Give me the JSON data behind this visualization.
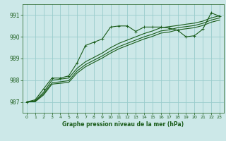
{
  "title": "Graphe pression niveau de la mer (hPa)",
  "bg_color": "#cce8e8",
  "grid_color": "#99cccc",
  "line_color": "#1a5c1a",
  "xlim": [
    -0.5,
    23.5
  ],
  "ylim": [
    986.5,
    991.5
  ],
  "yticks": [
    987,
    988,
    989,
    990,
    991
  ],
  "xticks": [
    0,
    1,
    2,
    3,
    4,
    5,
    6,
    7,
    8,
    9,
    10,
    11,
    12,
    13,
    14,
    15,
    16,
    17,
    18,
    19,
    20,
    21,
    22,
    23
  ],
  "series1_x": [
    0,
    1,
    2,
    3,
    4,
    5,
    6,
    7,
    8,
    9,
    10,
    11,
    12,
    13,
    14,
    15,
    16,
    17,
    18,
    19,
    20,
    21,
    22,
    23
  ],
  "series1_y": [
    987.0,
    987.1,
    987.6,
    988.1,
    988.1,
    988.2,
    988.8,
    989.6,
    989.75,
    989.9,
    990.45,
    990.5,
    990.5,
    990.25,
    990.45,
    990.45,
    990.45,
    990.4,
    990.3,
    990.0,
    990.05,
    990.35,
    991.1,
    990.95
  ],
  "series2_x": [
    0,
    1,
    2,
    3,
    4,
    5,
    6,
    7,
    8,
    9,
    10,
    11,
    12,
    13,
    14,
    15,
    16,
    17,
    18,
    19,
    20,
    21,
    22,
    23
  ],
  "series2_y": [
    987.0,
    987.05,
    987.45,
    988.0,
    988.05,
    988.1,
    988.55,
    988.85,
    989.05,
    989.25,
    989.5,
    989.7,
    989.85,
    990.0,
    990.15,
    990.27,
    990.42,
    990.47,
    990.52,
    990.58,
    990.63,
    990.72,
    990.87,
    990.97
  ],
  "series3_x": [
    0,
    1,
    2,
    3,
    4,
    5,
    6,
    7,
    8,
    9,
    10,
    11,
    12,
    13,
    14,
    15,
    16,
    17,
    18,
    19,
    20,
    21,
    22,
    23
  ],
  "series3_y": [
    987.0,
    987.03,
    987.38,
    987.88,
    987.93,
    987.98,
    988.43,
    988.72,
    988.92,
    989.12,
    989.35,
    989.55,
    989.7,
    989.85,
    990.0,
    990.12,
    990.27,
    990.32,
    990.42,
    990.47,
    990.52,
    990.62,
    990.77,
    990.87
  ],
  "series4_x": [
    0,
    1,
    2,
    3,
    4,
    5,
    6,
    7,
    8,
    9,
    10,
    11,
    12,
    13,
    14,
    15,
    16,
    17,
    18,
    19,
    20,
    21,
    22,
    23
  ],
  "series4_y": [
    987.0,
    987.01,
    987.32,
    987.82,
    987.86,
    987.9,
    988.33,
    988.62,
    988.82,
    989.02,
    989.25,
    989.45,
    989.6,
    989.75,
    989.9,
    990.02,
    990.17,
    990.22,
    990.32,
    990.37,
    990.42,
    990.52,
    990.67,
    990.77
  ]
}
